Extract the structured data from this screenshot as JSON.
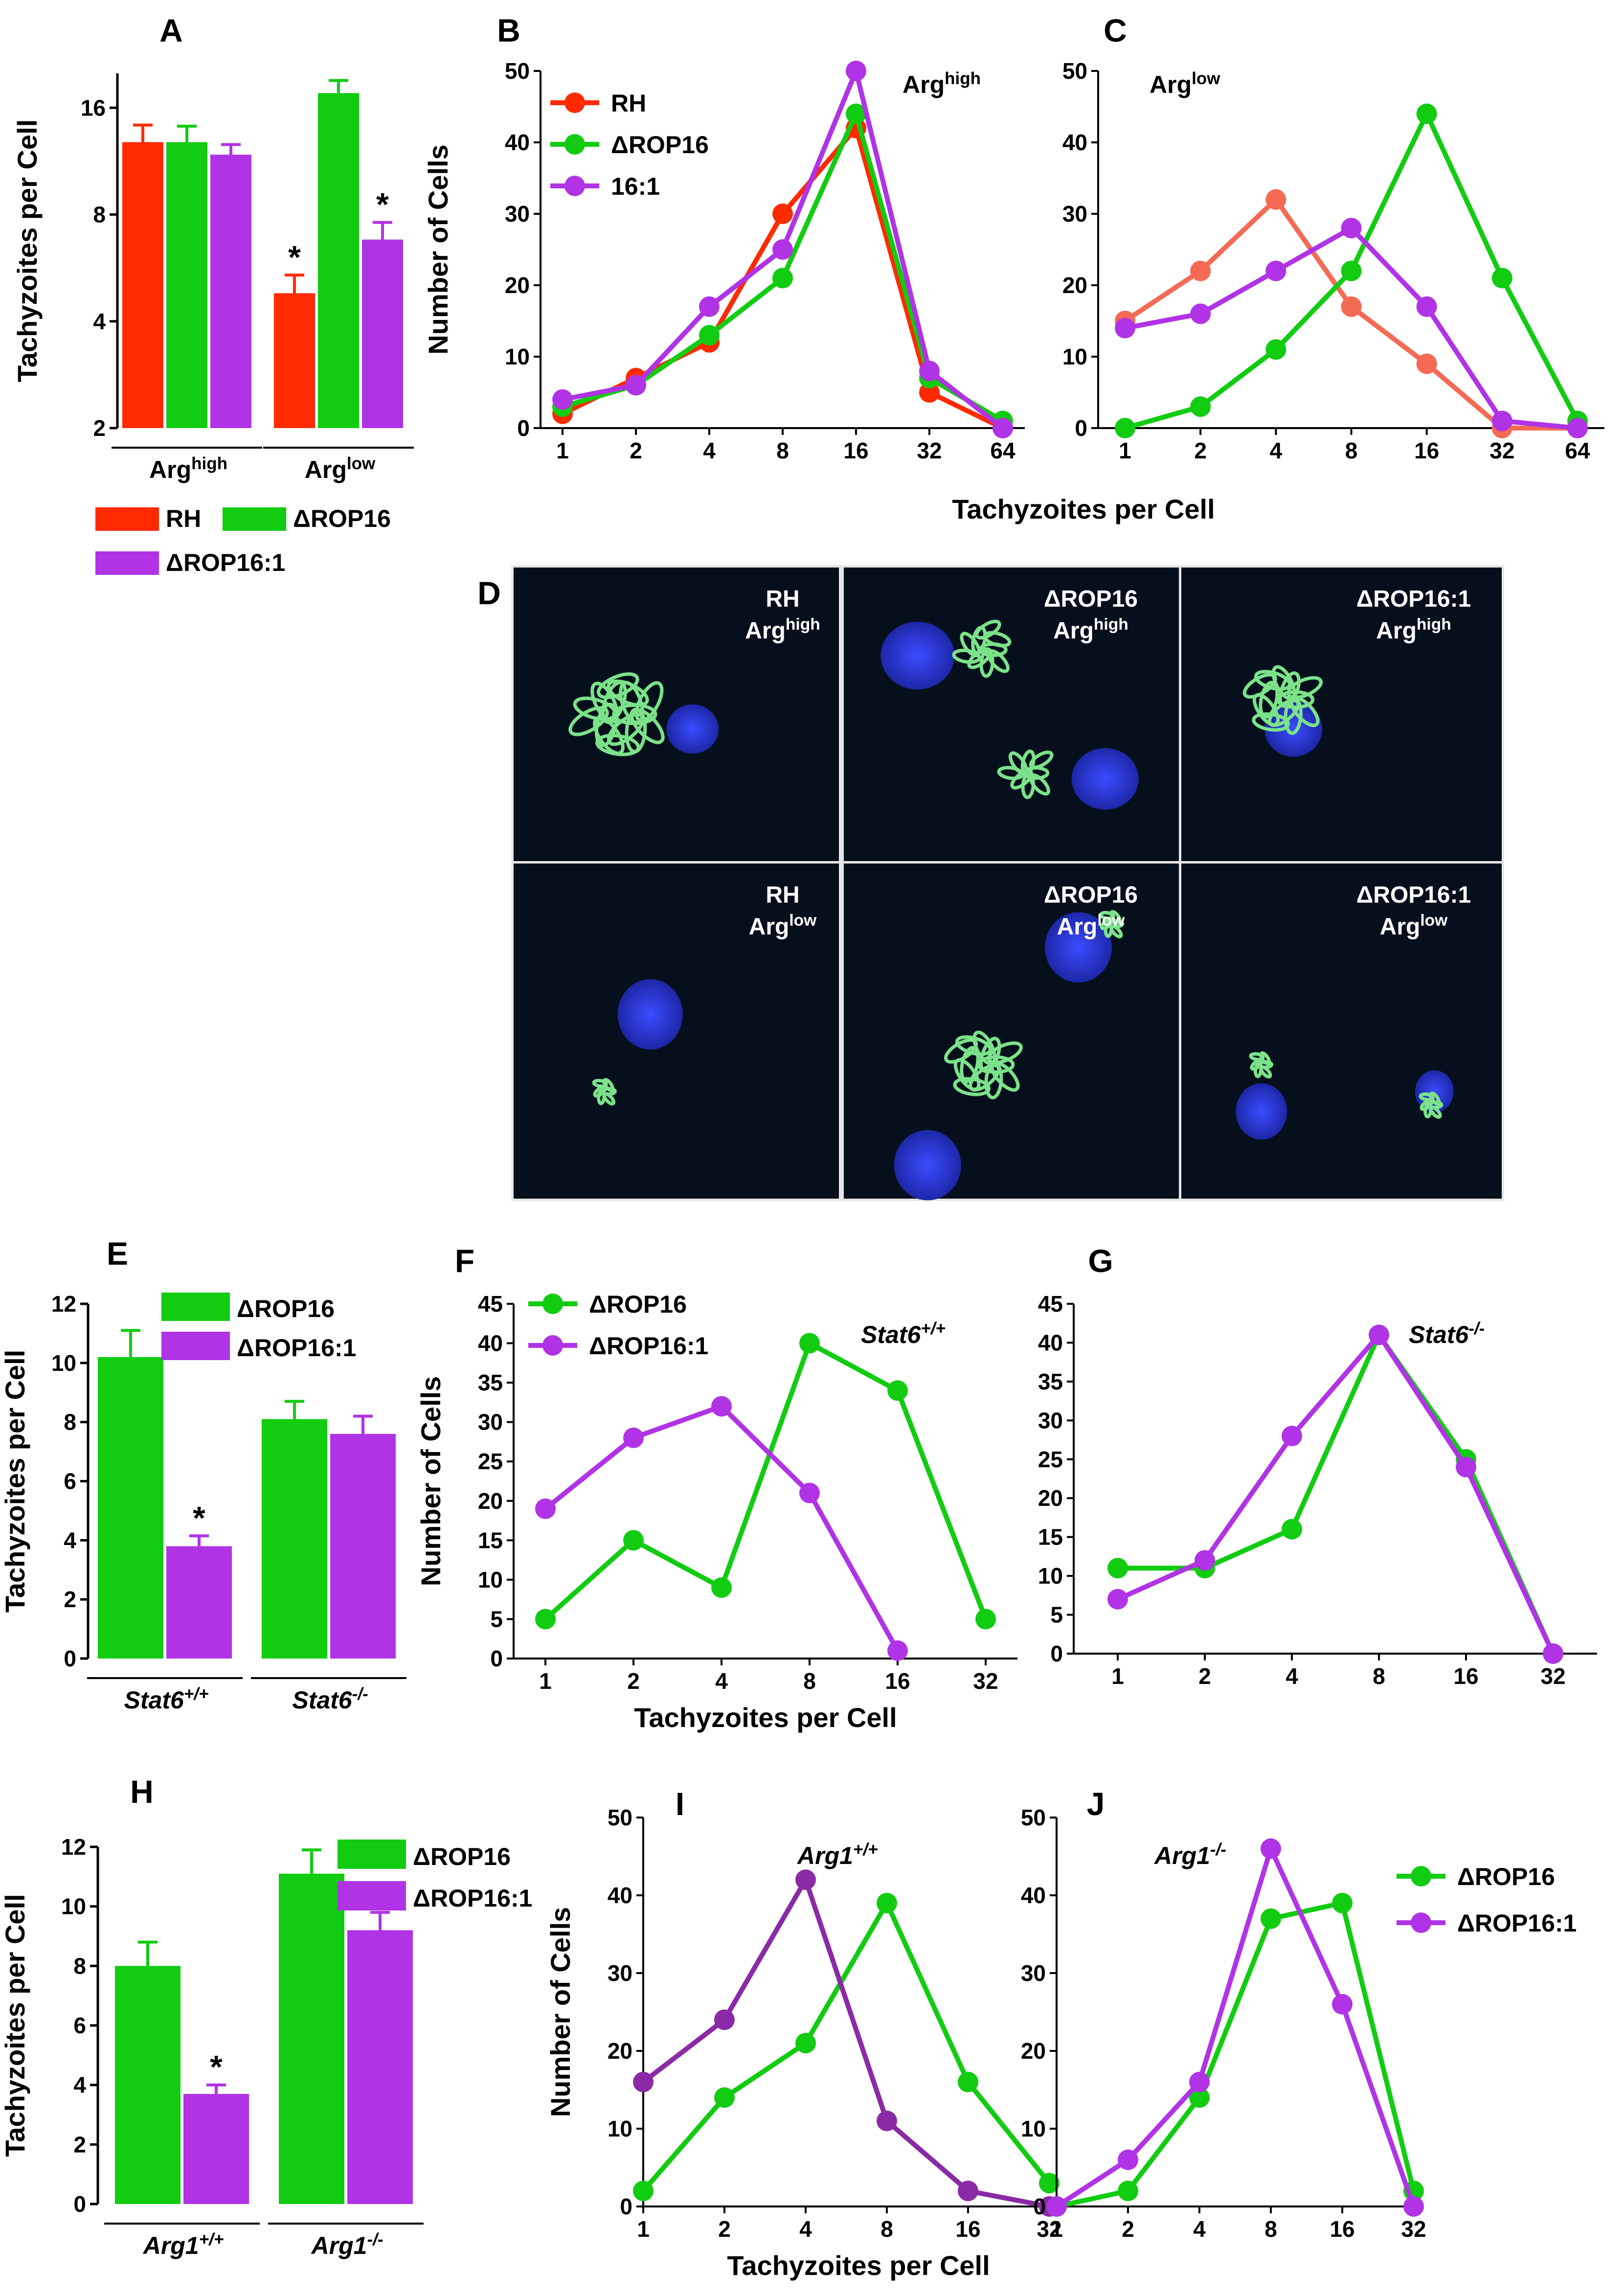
{
  "colors": {
    "rh": "#ff2a00",
    "rop16": "#11cc11",
    "rop16_1": "#b033e6",
    "rh_light": "#f46a55",
    "rop16_1_dark": "#8a2aa6"
  },
  "microscopy": {
    "panel_letter": "D",
    "tiles": [
      {
        "strain": "RH",
        "condition": "Arg",
        "sup": "high"
      },
      {
        "strain": "ΔROP16",
        "condition": "Arg",
        "sup": "high"
      },
      {
        "strain": "ΔROP16:1",
        "condition": "Arg",
        "sup": "high"
      },
      {
        "strain": "RH",
        "condition": "Arg",
        "sup": "low"
      },
      {
        "strain": "ΔROP16",
        "condition": "Arg",
        "sup": "low"
      },
      {
        "strain": "ΔROP16:1",
        "condition": "Arg",
        "sup": "low"
      }
    ]
  },
  "chart_data": [
    {
      "id": "A",
      "type": "bar",
      "panel_letter": "A",
      "ylabel": "Tachyzoites per Cell",
      "yscale": "log2",
      "ylim": [
        2,
        20
      ],
      "yticks": [
        "2",
        "4",
        "8",
        "16"
      ],
      "groups": [
        {
          "label": "Arg",
          "sup": "high"
        },
        {
          "label": "Arg",
          "sup": "low"
        }
      ],
      "series": [
        {
          "name": "RH",
          "color": "#ff2a00",
          "values": [
            12.8,
            4.8
          ],
          "errors": [
            1.5,
            0.6
          ],
          "sig": [
            false,
            true
          ]
        },
        {
          "name": "ΔROP16",
          "color": "#11cc11",
          "values": [
            12.8,
            17.6
          ],
          "errors": [
            1.4,
            1.5
          ],
          "sig": [
            false,
            false
          ]
        },
        {
          "name": "ΔROP16:1",
          "color": "#b033e6",
          "values": [
            11.8,
            6.8
          ],
          "errors": [
            0.8,
            0.8
          ],
          "sig": [
            false,
            true
          ]
        }
      ],
      "sig_marker": "*",
      "legend": [
        {
          "name": "RH",
          "color": "#ff2a00"
        },
        {
          "name": "ΔROP16",
          "color": "#11cc11"
        },
        {
          "name": "ΔROP16:1",
          "color": "#b033e6"
        }
      ]
    },
    {
      "id": "B",
      "type": "line",
      "panel_letter": "B",
      "ylabel": "Number of Cells",
      "xlabels": [
        "1",
        "2",
        "4",
        "8",
        "16",
        "32",
        "64"
      ],
      "ylim": [
        0,
        50
      ],
      "yticks": [
        "0",
        "10",
        "20",
        "30",
        "40",
        "50"
      ],
      "annotation": {
        "label": "Arg",
        "sup": "high"
      },
      "legend": [
        "RH",
        "ΔROP16",
        "16:1"
      ],
      "series": [
        {
          "name": "RH",
          "color": "#ff2a00",
          "values": [
            2,
            7,
            12,
            30,
            42,
            5,
            0
          ]
        },
        {
          "name": "ΔROP16",
          "color": "#11cc11",
          "values": [
            3,
            6,
            13,
            21,
            44,
            7,
            1
          ]
        },
        {
          "name": "16:1",
          "color": "#b033e6",
          "values": [
            4,
            6,
            17,
            25,
            50,
            8,
            0
          ]
        }
      ]
    },
    {
      "id": "C",
      "type": "line",
      "panel_letter": "C",
      "xlabels": [
        "1",
        "2",
        "4",
        "8",
        "16",
        "32",
        "64"
      ],
      "ylim": [
        0,
        50
      ],
      "yticks": [
        "0",
        "10",
        "20",
        "30",
        "40",
        "50"
      ],
      "annotation": {
        "label": "Arg",
        "sup": "low"
      },
      "series": [
        {
          "color": "#f46a55",
          "values": [
            15,
            22,
            32,
            17,
            9,
            0,
            0
          ]
        },
        {
          "color": "#11cc11",
          "values": [
            0,
            3,
            11,
            22,
            44,
            21,
            1
          ]
        },
        {
          "color": "#b033e6",
          "values": [
            14,
            16,
            22,
            28,
            17,
            1,
            0
          ]
        }
      ],
      "shared_xlabel": "Tachyzoites per Cell"
    },
    {
      "id": "E",
      "type": "bar",
      "panel_letter": "E",
      "ylabel": "Tachyzoites per Cell",
      "ylim": [
        0,
        12
      ],
      "yticks": [
        "0",
        "2",
        "4",
        "6",
        "8",
        "10",
        "12"
      ],
      "groups": [
        {
          "label": "Stat6",
          "sup": "+/+"
        },
        {
          "label": "Stat6",
          "sup": "-/-"
        }
      ],
      "series": [
        {
          "name": "ΔROP16",
          "color": "#11cc11",
          "values": [
            10.2,
            8.1
          ],
          "errors": [
            0.9,
            0.6
          ],
          "sig": [
            false,
            false
          ]
        },
        {
          "name": "ΔROP16:1",
          "color": "#b033e6",
          "values": [
            3.8,
            7.6
          ],
          "errors": [
            0.35,
            0.6
          ],
          "sig": [
            true,
            false
          ]
        }
      ],
      "sig_marker": "*",
      "legend": [
        {
          "name": "ΔROP16",
          "color": "#11cc11"
        },
        {
          "name": "ΔROP16:1",
          "color": "#b033e6"
        }
      ]
    },
    {
      "id": "F",
      "type": "line",
      "panel_letter": "F",
      "ylabel": "Number of Cells",
      "xlabel": "Tachyzoites per Cell",
      "xlabels": [
        "1",
        "2",
        "4",
        "8",
        "16",
        "32"
      ],
      "ylim": [
        0,
        45
      ],
      "yticks": [
        "0",
        "5",
        "10",
        "15",
        "20",
        "25",
        "30",
        "35",
        "40",
        "45"
      ],
      "annotation": {
        "label": "Stat6",
        "sup": "+/+"
      },
      "legend": [
        "ΔROP16",
        "ΔROP16:1"
      ],
      "series": [
        {
          "name": "ΔROP16",
          "color": "#11cc11",
          "values": [
            5,
            15,
            9,
            40,
            34,
            5
          ]
        },
        {
          "name": "ΔROP16:1",
          "color": "#b033e6",
          "values": [
            19,
            28,
            32,
            21,
            1,
            null
          ]
        }
      ]
    },
    {
      "id": "G",
      "type": "line",
      "panel_letter": "G",
      "xlabels": [
        "1",
        "2",
        "4",
        "8",
        "16",
        "32"
      ],
      "ylim": [
        0,
        45
      ],
      "yticks": [
        "0",
        "5",
        "10",
        "15",
        "20",
        "25",
        "30",
        "35",
        "40",
        "45"
      ],
      "annotation": {
        "label": "Stat6",
        "sup": "-/-"
      },
      "series": [
        {
          "color": "#11cc11",
          "values": [
            11,
            11,
            16,
            41,
            25,
            0
          ]
        },
        {
          "color": "#b033e6",
          "values": [
            7,
            12,
            28,
            41,
            24,
            0
          ]
        }
      ]
    },
    {
      "id": "H",
      "type": "bar",
      "panel_letter": "H",
      "ylabel": "Tachyzoites per Cell",
      "ylim": [
        0,
        12
      ],
      "yticks": [
        "0",
        "2",
        "4",
        "6",
        "8",
        "10",
        "12"
      ],
      "groups": [
        {
          "label": "Arg1",
          "sup": "+/+"
        },
        {
          "label": "Arg1",
          "sup": "-/-"
        }
      ],
      "series": [
        {
          "name": "ΔROP16",
          "color": "#11cc11",
          "values": [
            8.0,
            11.1
          ],
          "errors": [
            0.8,
            0.8
          ],
          "sig": [
            false,
            false
          ]
        },
        {
          "name": "ΔROP16:1",
          "color": "#b033e6",
          "values": [
            3.7,
            9.2
          ],
          "errors": [
            0.3,
            0.6
          ],
          "sig": [
            true,
            false
          ]
        }
      ],
      "sig_marker": "*",
      "legend": [
        {
          "name": "ΔROP16",
          "color": "#11cc11"
        },
        {
          "name": "ΔROP16:1",
          "color": "#b033e6"
        }
      ]
    },
    {
      "id": "I",
      "type": "line",
      "panel_letter": "I",
      "ylabel": "Number of Cells",
      "xlabels": [
        "1",
        "2",
        "4",
        "8",
        "16",
        "32"
      ],
      "ylim": [
        0,
        50
      ],
      "yticks": [
        "0",
        "10",
        "20",
        "30",
        "40",
        "50"
      ],
      "annotation": {
        "label": "Arg1",
        "sup": "+/+"
      },
      "series": [
        {
          "color": "#11cc11",
          "values": [
            2,
            14,
            21,
            39,
            16,
            3
          ]
        },
        {
          "color": "#8a2aa6",
          "values": [
            16,
            24,
            42,
            11,
            2,
            0
          ]
        }
      ],
      "shared_xlabel": "Tachyzoites per Cell"
    },
    {
      "id": "J",
      "type": "line",
      "panel_letter": "J",
      "xlabels": [
        "1",
        "2",
        "4",
        "8",
        "16",
        "32"
      ],
      "ylim": [
        0,
        50
      ],
      "yticks": [
        "0",
        "10",
        "20",
        "30",
        "40",
        "50"
      ],
      "annotation": {
        "label": "Arg1",
        "sup": "-/-"
      },
      "legend": [
        "ΔROP16",
        "ΔROP16:1"
      ],
      "series": [
        {
          "name": "ΔROP16",
          "color": "#11cc11",
          "values": [
            0,
            2,
            14,
            37,
            39,
            2
          ]
        },
        {
          "name": "ΔROP16:1",
          "color": "#b033e6",
          "values": [
            0,
            6,
            16,
            46,
            26,
            0
          ]
        }
      ]
    }
  ]
}
